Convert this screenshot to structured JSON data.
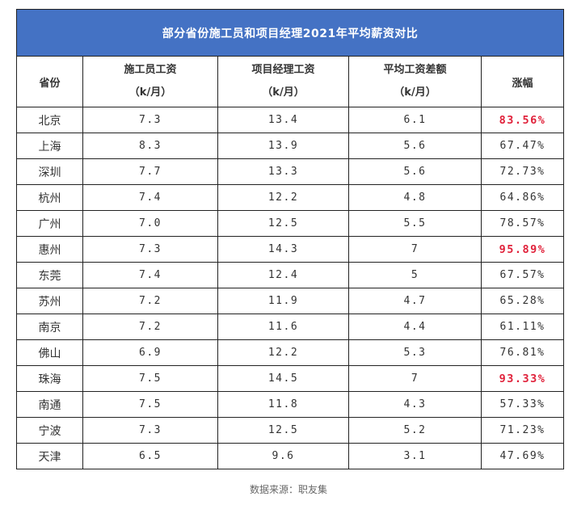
{
  "chart_data": {
    "type": "table",
    "title": "部分省份施工员和项目经理2021年平均薪资对比",
    "columns": [
      {
        "line1": "省份",
        "line2": ""
      },
      {
        "line1": "施工员工资",
        "line2": "（k/月）"
      },
      {
        "line1": "项目经理工资",
        "line2": "（k/月）"
      },
      {
        "line1": "平均工资差额",
        "line2": "（k/月）"
      },
      {
        "line1": "涨幅",
        "line2": ""
      }
    ],
    "rows": [
      {
        "province": "北京",
        "worker": "7.3",
        "manager": "13.4",
        "diff": "6.1",
        "growth": "83.56%",
        "highlight": true
      },
      {
        "province": "上海",
        "worker": "8.3",
        "manager": "13.9",
        "diff": "5.6",
        "growth": "67.47%",
        "highlight": false
      },
      {
        "province": "深圳",
        "worker": "7.7",
        "manager": "13.3",
        "diff": "5.6",
        "growth": "72.73%",
        "highlight": false
      },
      {
        "province": "杭州",
        "worker": "7.4",
        "manager": "12.2",
        "diff": "4.8",
        "growth": "64.86%",
        "highlight": false
      },
      {
        "province": "广州",
        "worker": "7.0",
        "manager": "12.5",
        "diff": "5.5",
        "growth": "78.57%",
        "highlight": false
      },
      {
        "province": "惠州",
        "worker": "7.3",
        "manager": "14.3",
        "diff": "7",
        "growth": "95.89%",
        "highlight": true
      },
      {
        "province": "东莞",
        "worker": "7.4",
        "manager": "12.4",
        "diff": "5",
        "growth": "67.57%",
        "highlight": false
      },
      {
        "province": "苏州",
        "worker": "7.2",
        "manager": "11.9",
        "diff": "4.7",
        "growth": "65.28%",
        "highlight": false
      },
      {
        "province": "南京",
        "worker": "7.2",
        "manager": "11.6",
        "diff": "4.4",
        "growth": "61.11%",
        "highlight": false
      },
      {
        "province": "佛山",
        "worker": "6.9",
        "manager": "12.2",
        "diff": "5.3",
        "growth": "76.81%",
        "highlight": false
      },
      {
        "province": "珠海",
        "worker": "7.5",
        "manager": "14.5",
        "diff": "7",
        "growth": "93.33%",
        "highlight": true
      },
      {
        "province": "南通",
        "worker": "7.5",
        "manager": "11.8",
        "diff": "4.3",
        "growth": "57.33%",
        "highlight": false
      },
      {
        "province": "宁波",
        "worker": "7.3",
        "manager": "12.5",
        "diff": "5.2",
        "growth": "71.23%",
        "highlight": false
      },
      {
        "province": "天津",
        "worker": "6.5",
        "manager": "9.6",
        "diff": "3.1",
        "growth": "47.69%",
        "highlight": false
      }
    ]
  },
  "colors": {
    "header_bg": "#4472c4",
    "header_text": "#ffffff",
    "highlight_text": "#e0213a"
  },
  "source": "数据来源：职友集"
}
